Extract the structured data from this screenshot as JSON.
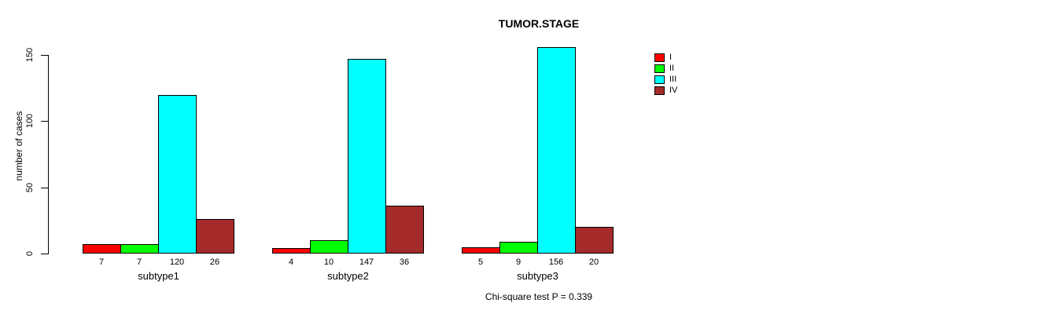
{
  "chart_data": {
    "type": "bar",
    "title": "TUMOR.STAGE",
    "xlabel": "",
    "ylabel": "number of cases",
    "categories": [
      "subtype1",
      "subtype2",
      "subtype3"
    ],
    "series": [
      {
        "name": "I",
        "color": "#FF0000",
        "values": [
          7,
          4,
          5
        ]
      },
      {
        "name": "II",
        "color": "#00FF00",
        "values": [
          7,
          10,
          9
        ]
      },
      {
        "name": "III",
        "color": "#00FFFF",
        "values": [
          120,
          147,
          156
        ]
      },
      {
        "name": "IV",
        "color": "#A52A2A",
        "values": [
          26,
          36,
          20
        ]
      }
    ],
    "bar_value_labels": {
      "subtype1": [
        7,
        7,
        120,
        26
      ],
      "subtype2": [
        4,
        10,
        147,
        36
      ],
      "subtype3": [
        5,
        9,
        156,
        20
      ]
    },
    "ylim": [
      0,
      150
    ],
    "yticks": [
      0,
      50,
      100,
      150
    ],
    "grid": false,
    "legend_position": "top-right",
    "legend_entries": [
      "I",
      "II",
      "III",
      "IV"
    ],
    "annotation": "Chi-square test P = 0.339",
    "bar_border_color": "#000000",
    "background_color": "#FFFFFF"
  }
}
